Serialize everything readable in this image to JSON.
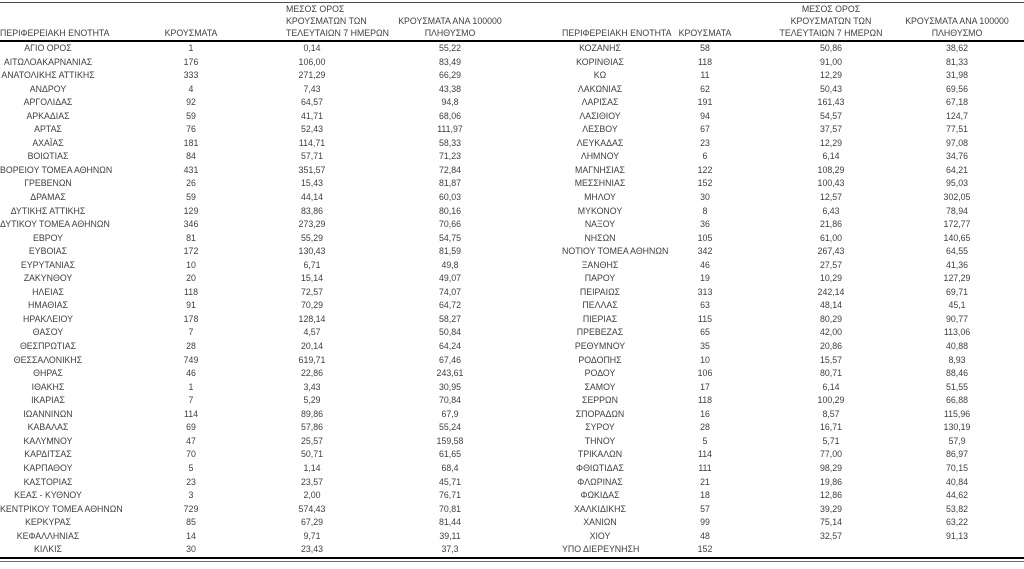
{
  "colors": {
    "text": "#3f3f3f",
    "header_rule": "#000000",
    "top_rule": "#4d4d4d",
    "bottom_rule": "#000000"
  },
  "table": {
    "region_header": "ΠΕΡΙΦΕΡΕΙΑΚΗ ΕΝΟΤΗΤΑ",
    "cases_header": "ΚΡΟΥΣΜΑΤΑ",
    "avg7_header_lines": [
      "ΜΕΣΟΣ ΟΡΟΣ",
      "ΚΡΟΥΣΜΑΤΩΝ ΤΩΝ",
      "ΤΕΛΕΥΤΑΙΩΝ 7 ΗΜΕΡΩΝ"
    ],
    "per100k_header_lines": [
      "ΚΡΟΥΣΜΑΤΑ ΑΝΑ 100000",
      "ΠΛΗΘΥΣΜΟ"
    ],
    "left_rows": [
      [
        "ΑΓΙΟ ΟΡΟΣ",
        "1",
        "0,14",
        "55,22"
      ],
      [
        "ΑΙΤΩΛΟΑΚΑΡΝΑΝΙΑΣ",
        "176",
        "106,00",
        "83,49"
      ],
      [
        "ΑΝΑΤΟΛΙΚΗΣ ΑΤΤΙΚΗΣ",
        "333",
        "271,29",
        "66,29"
      ],
      [
        "ΑΝΔΡΟΥ",
        "4",
        "7,43",
        "43,38"
      ],
      [
        "ΑΡΓΟΛΙΔΑΣ",
        "92",
        "64,57",
        "94,8"
      ],
      [
        "ΑΡΚΑΔΙΑΣ",
        "59",
        "41,71",
        "68,06"
      ],
      [
        "ΑΡΤΑΣ",
        "76",
        "52,43",
        "111,97"
      ],
      [
        "ΑΧΑΪΑΣ",
        "181",
        "114,71",
        "58,33"
      ],
      [
        "ΒΟΙΩΤΙΑΣ",
        "84",
        "57,71",
        "71,23"
      ],
      [
        "ΒΟΡΕΙΟΥ ΤΟΜΕΑ ΑΘΗΝΩΝ",
        "431",
        "351,57",
        "72,84"
      ],
      [
        "ΓΡΕΒΕΝΩΝ",
        "26",
        "15,43",
        "81,87"
      ],
      [
        "ΔΡΑΜΑΣ",
        "59",
        "44,14",
        "60,03"
      ],
      [
        "ΔΥΤΙΚΗΣ ΑΤΤΙΚΗΣ",
        "129",
        "83,86",
        "80,16"
      ],
      [
        "ΔΥΤΙΚΟΥ ΤΟΜΕΑ ΑΘΗΝΩΝ",
        "346",
        "273,29",
        "70,66"
      ],
      [
        "ΕΒΡΟΥ",
        "81",
        "55,29",
        "54,75"
      ],
      [
        "ΕΥΒΟΙΑΣ",
        "172",
        "130,43",
        "81,59"
      ],
      [
        "ΕΥΡΥΤΑΝΙΑΣ",
        "10",
        "6,71",
        "49,8"
      ],
      [
        "ΖΑΚΥΝΘΟΥ",
        "20",
        "15,14",
        "49,07"
      ],
      [
        "ΗΛΕΙΑΣ",
        "118",
        "72,57",
        "74,07"
      ],
      [
        "ΗΜΑΘΙΑΣ",
        "91",
        "70,29",
        "64,72"
      ],
      [
        "ΗΡΑΚΛΕΙΟΥ",
        "178",
        "128,14",
        "58,27"
      ],
      [
        "ΘΑΣΟΥ",
        "7",
        "4,57",
        "50,84"
      ],
      [
        "ΘΕΣΠΡΩΤΙΑΣ",
        "28",
        "20,14",
        "64,24"
      ],
      [
        "ΘΕΣΣΑΛΟΝΙΚΗΣ",
        "749",
        "619,71",
        "67,46"
      ],
      [
        "ΘΗΡΑΣ",
        "46",
        "22,86",
        "243,61"
      ],
      [
        "ΙΘΑΚΗΣ",
        "1",
        "3,43",
        "30,95"
      ],
      [
        "ΙΚΑΡΙΑΣ",
        "7",
        "5,29",
        "70,84"
      ],
      [
        "ΙΩΑΝΝΙΝΩΝ",
        "114",
        "89,86",
        "67,9"
      ],
      [
        "ΚΑΒΑΛΑΣ",
        "69",
        "57,86",
        "55,24"
      ],
      [
        "ΚΑΛΥΜΝΟΥ",
        "47",
        "25,57",
        "159,58"
      ],
      [
        "ΚΑΡΔΙΤΣΑΣ",
        "70",
        "50,71",
        "61,65"
      ],
      [
        "ΚΑΡΠΑΘΟΥ",
        "5",
        "1,14",
        "68,4"
      ],
      [
        "ΚΑΣΤΟΡΙΑΣ",
        "23",
        "23,57",
        "45,71"
      ],
      [
        "ΚΕΑΣ - ΚΥΘΝΟΥ",
        "3",
        "2,00",
        "76,71"
      ],
      [
        "ΚΕΝΤΡΙΚΟΥ ΤΟΜΕΑ ΑΘΗΝΩΝ",
        "729",
        "574,43",
        "70,81"
      ],
      [
        "ΚΕΡΚΥΡΑΣ",
        "85",
        "67,29",
        "81,44"
      ],
      [
        "ΚΕΦΑΛΛΗΝΙΑΣ",
        "14",
        "9,71",
        "39,11"
      ],
      [
        "ΚΙΛΚΙΣ",
        "30",
        "23,43",
        "37,3"
      ]
    ],
    "right_rows": [
      [
        "ΚΟΖΑΝΗΣ",
        "58",
        "50,86",
        "38,62"
      ],
      [
        "ΚΟΡΙΝΘΙΑΣ",
        "118",
        "91,00",
        "81,33"
      ],
      [
        "ΚΩ",
        "11",
        "12,29",
        "31,98"
      ],
      [
        "ΛΑΚΩΝΙΑΣ",
        "62",
        "50,43",
        "69,56"
      ],
      [
        "ΛΑΡΙΣΑΣ",
        "191",
        "161,43",
        "67,18"
      ],
      [
        "ΛΑΣΙΘΙΟΥ",
        "94",
        "54,57",
        "124,7"
      ],
      [
        "ΛΕΣΒΟΥ",
        "67",
        "37,57",
        "77,51"
      ],
      [
        "ΛΕΥΚΑΔΑΣ",
        "23",
        "12,29",
        "97,08"
      ],
      [
        "ΛΗΜΝΟΥ",
        "6",
        "6,14",
        "34,76"
      ],
      [
        "ΜΑΓΝΗΣΙΑΣ",
        "122",
        "108,29",
        "64,21"
      ],
      [
        "ΜΕΣΣΗΝΙΑΣ",
        "152",
        "100,43",
        "95,03"
      ],
      [
        "ΜΗΛΟΥ",
        "30",
        "12,57",
        "302,05"
      ],
      [
        "ΜΥΚΟΝΟΥ",
        "8",
        "6,43",
        "78,94"
      ],
      [
        "ΝΑΞΟΥ",
        "36",
        "21,86",
        "172,77"
      ],
      [
        "ΝΗΣΩΝ",
        "105",
        "61,00",
        "140,65"
      ],
      [
        "ΝΟΤΙΟΥ ΤΟΜΕΑ ΑΘΗΝΩΝ",
        "342",
        "267,43",
        "64,55"
      ],
      [
        "ΞΑΝΘΗΣ",
        "46",
        "27,57",
        "41,36"
      ],
      [
        "ΠΑΡΟΥ",
        "19",
        "10,29",
        "127,29"
      ],
      [
        "ΠΕΙΡΑΙΩΣ",
        "313",
        "242,14",
        "69,71"
      ],
      [
        "ΠΕΛΛΑΣ",
        "63",
        "48,14",
        "45,1"
      ],
      [
        "ΠΙΕΡΙΑΣ",
        "115",
        "80,29",
        "90,77"
      ],
      [
        "ΠΡΕΒΕΖΑΣ",
        "65",
        "42,00",
        "113,06"
      ],
      [
        "ΡΕΘΥΜΝΟΥ",
        "35",
        "20,86",
        "40,88"
      ],
      [
        "ΡΟΔΟΠΗΣ",
        "10",
        "15,57",
        "8,93"
      ],
      [
        "ΡΟΔΟΥ",
        "106",
        "80,71",
        "88,46"
      ],
      [
        "ΣΑΜΟΥ",
        "17",
        "6,14",
        "51,55"
      ],
      [
        "ΣΕΡΡΩΝ",
        "118",
        "100,29",
        "66,88"
      ],
      [
        "ΣΠΟΡΑΔΩΝ",
        "16",
        "8,57",
        "115,96"
      ],
      [
        "ΣΥΡΟΥ",
        "28",
        "16,71",
        "130,19"
      ],
      [
        "ΤΗΝΟΥ",
        "5",
        "5,71",
        "57,9"
      ],
      [
        "ΤΡΙΚΑΛΩΝ",
        "114",
        "77,00",
        "86,97"
      ],
      [
        "ΦΘΙΩΤΙΔΑΣ",
        "111",
        "98,29",
        "70,15"
      ],
      [
        "ΦΛΩΡΙΝΑΣ",
        "21",
        "19,86",
        "40,84"
      ],
      [
        "ΦΩΚΙΔΑΣ",
        "18",
        "12,86",
        "44,62"
      ],
      [
        "ΧΑΛΚΙΔΙΚΗΣ",
        "57",
        "39,29",
        "53,82"
      ],
      [
        "ΧΑΝΙΩΝ",
        "99",
        "75,14",
        "63,22"
      ],
      [
        "ΧΙΟΥ",
        "48",
        "32,57",
        "91,13"
      ],
      [
        "ΥΠΟ ΔΙΕΡΕΥΝΗΣΗ",
        "152",
        "",
        ""
      ]
    ]
  }
}
